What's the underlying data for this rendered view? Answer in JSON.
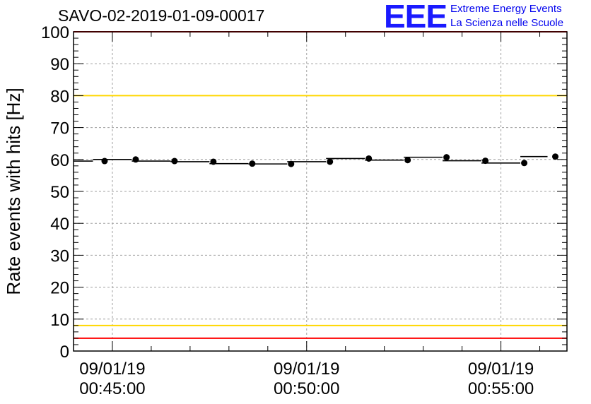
{
  "header": {
    "title": "SAVO-02-2019-01-09-00017",
    "logo_mark": "EEE",
    "logo_line1": "Extreme Energy Events",
    "logo_line2": "La Scienza nelle Scuole"
  },
  "chart_data": {
    "type": "scatter",
    "title": "SAVO-02-2019-01-09-00017",
    "xlabel": "",
    "ylabel": "Rate events with hits [Hz]",
    "ylim": [
      0,
      100
    ],
    "xlim_min": [
      44.0,
      56.7
    ],
    "y_ticks": [
      "0",
      "10",
      "20",
      "30",
      "40",
      "50",
      "60",
      "70",
      "80",
      "90",
      "100"
    ],
    "x_ticks": [
      {
        "min": 45,
        "date": "09/01/19",
        "time": "00:45:00"
      },
      {
        "min": 50,
        "date": "09/01/19",
        "time": "00:50:00"
      },
      {
        "min": 55,
        "date": "09/01/19",
        "time": "00:55:00"
      }
    ],
    "reference_lines": [
      {
        "value": 100,
        "color": "#ff0000"
      },
      {
        "value": 80,
        "color": "#ffd700"
      },
      {
        "value": 8,
        "color": "#ffd700"
      },
      {
        "value": 4,
        "color": "#ff0000"
      }
    ],
    "grid": true,
    "series": [
      {
        "name": "rate",
        "bin_edges": [
          44.0,
          44.5,
          45.5,
          46.5,
          47.5,
          48.5,
          49.5,
          50.5,
          51.5,
          52.5,
          53.5,
          54.5,
          55.5,
          56.2
        ],
        "values": [
          59.5,
          60.0,
          59.5,
          59.3,
          58.7,
          58.6,
          59.3,
          60.3,
          59.8,
          60.7,
          59.6,
          58.9,
          60.9
        ],
        "x": [
          44.8,
          45.6,
          46.6,
          47.6,
          48.6,
          49.6,
          50.6,
          51.6,
          52.6,
          53.6,
          54.6,
          55.6,
          56.4
        ]
      }
    ]
  }
}
